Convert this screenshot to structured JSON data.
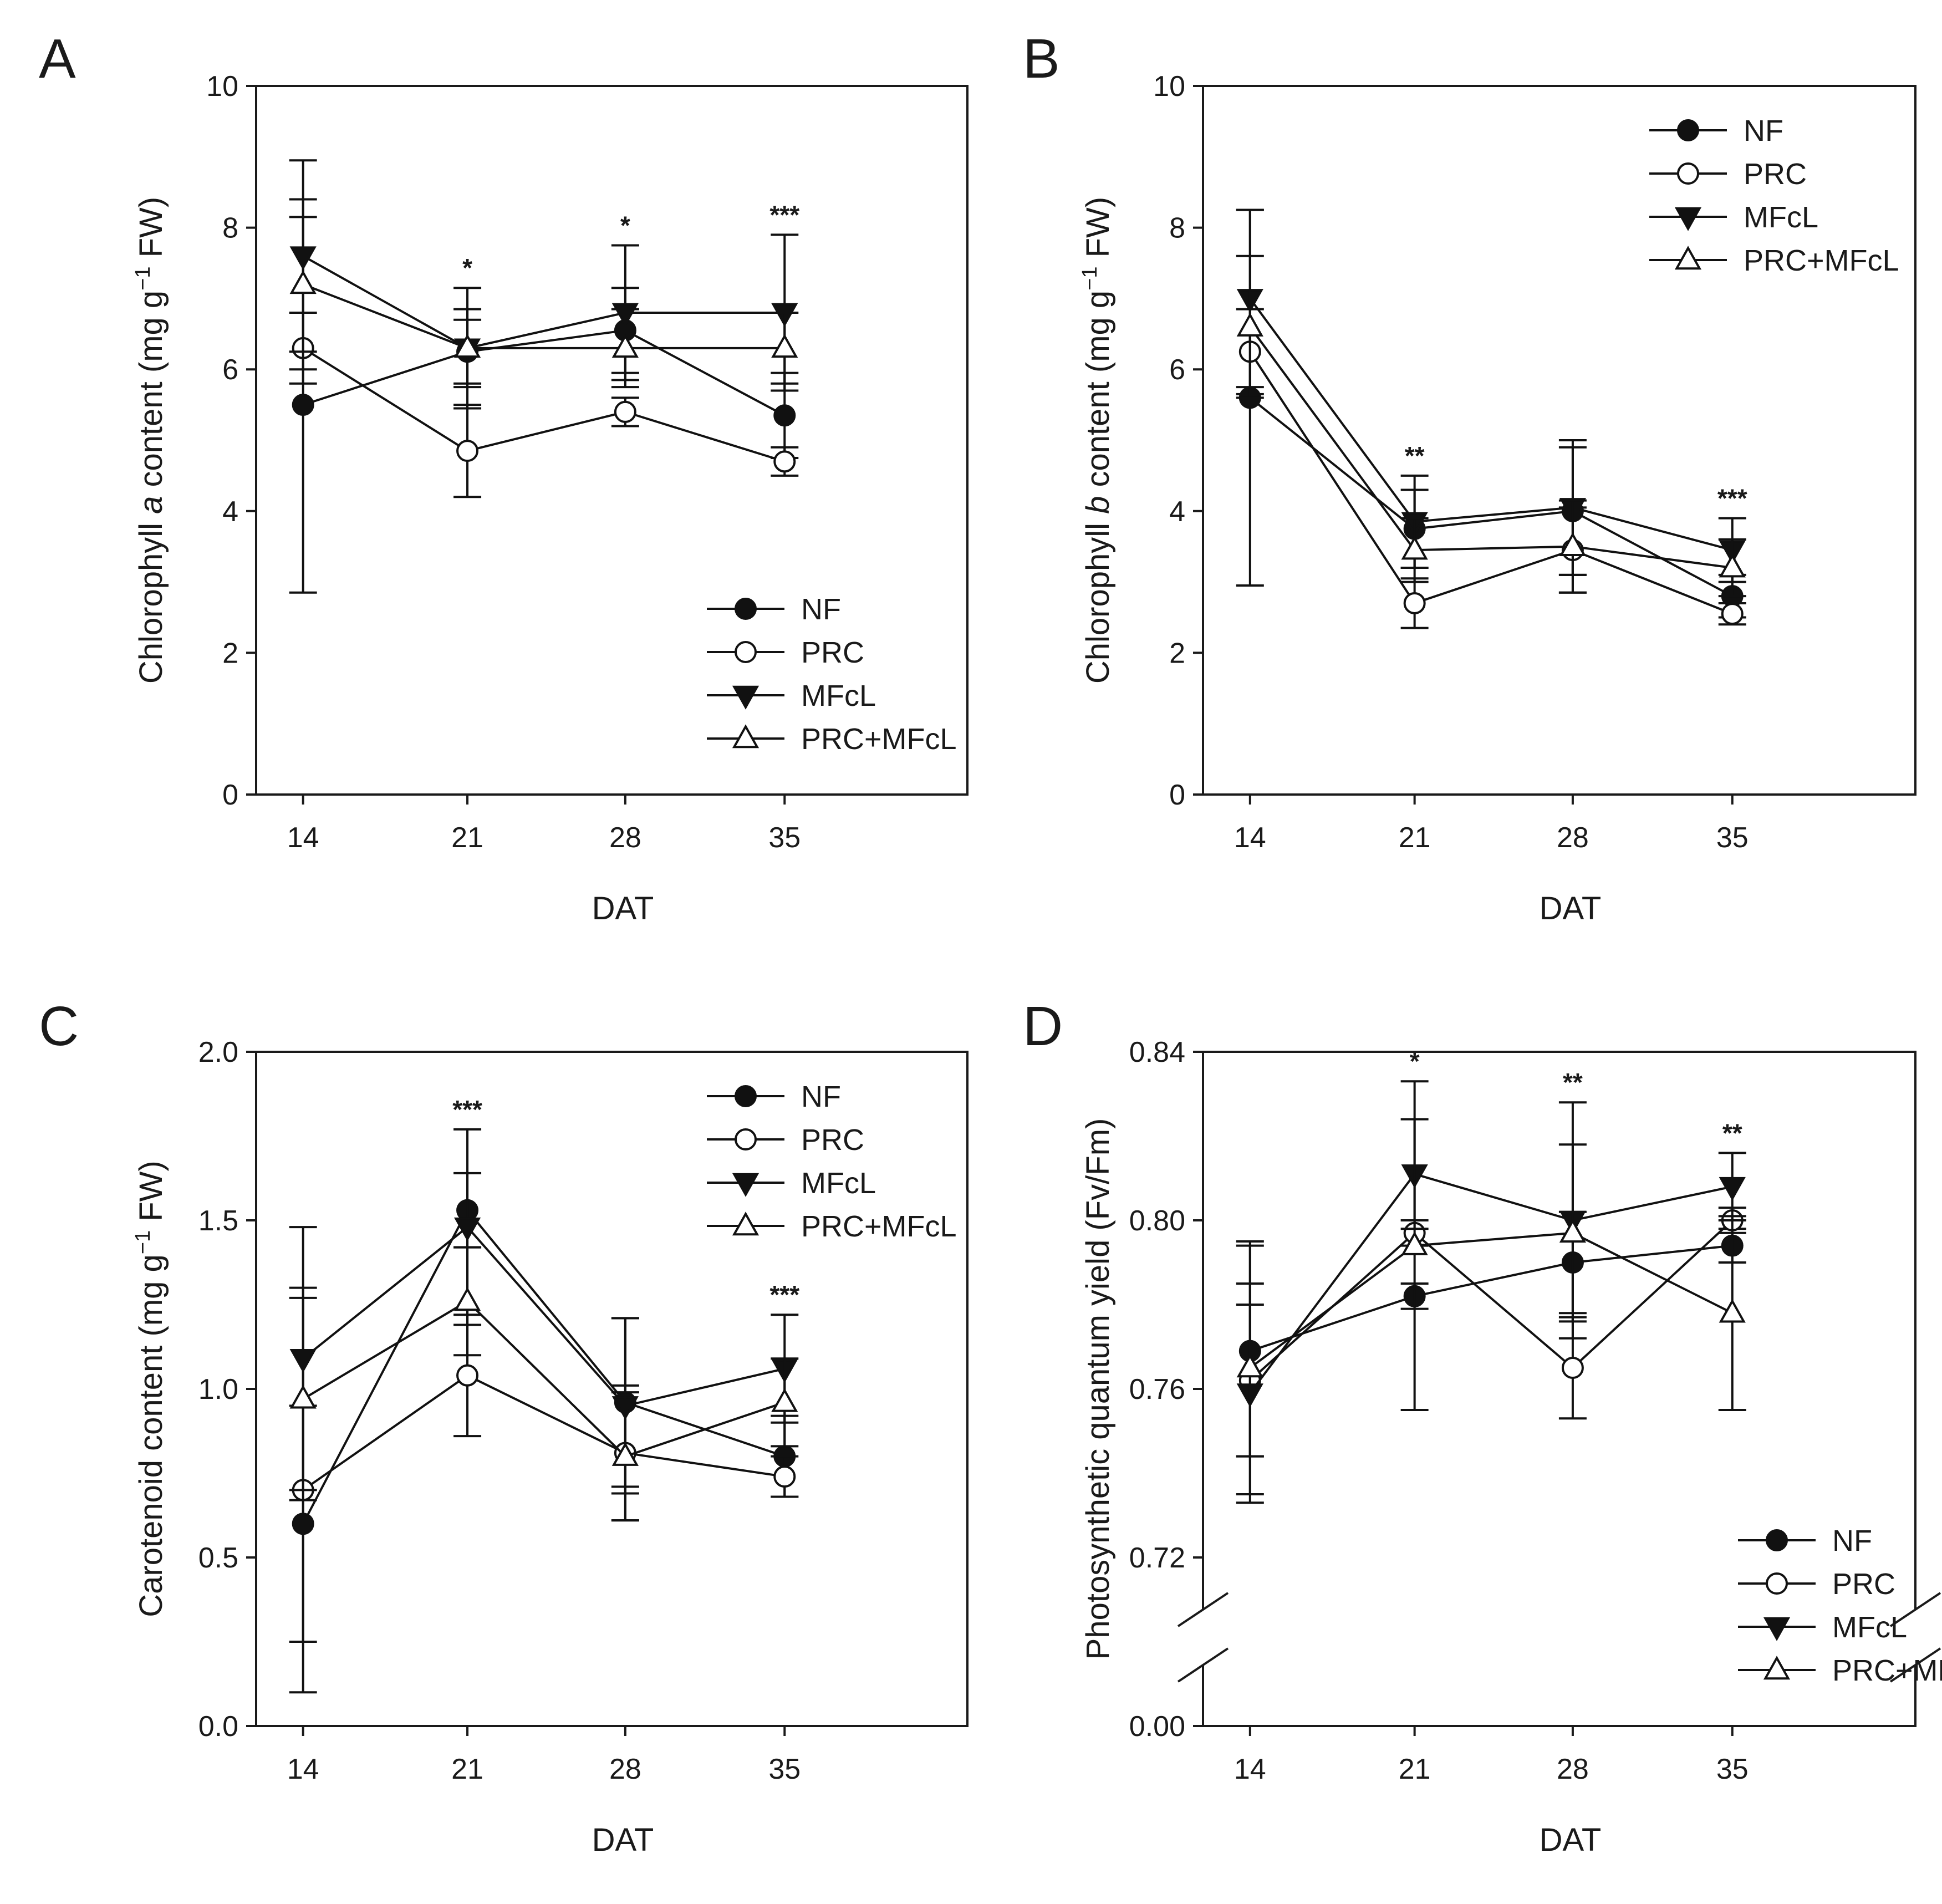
{
  "chart_data": [
    {
      "panel": "A",
      "type": "line",
      "x": [
        14,
        21,
        28,
        35
      ],
      "xlabel": "DAT",
      "ylabel": {
        "pre": "Chlorophyll ",
        "italic": "a",
        "post": " content (mg g",
        "sup": "−1",
        "end": " FW)"
      },
      "ylim": [
        0,
        10
      ],
      "yticks": [
        "0",
        "2",
        "4",
        "6",
        "8",
        "10"
      ],
      "ytick_values": [
        0,
        2,
        4,
        6,
        8,
        10
      ],
      "legend_position": "bottom-right",
      "series": [
        {
          "name": "NF",
          "marker": "circle-filled",
          "values": [
            5.5,
            6.25,
            6.55,
            5.35
          ],
          "err": [
            2.65,
            0.45,
            0.6,
            0.6
          ]
        },
        {
          "name": "PRC",
          "marker": "circle-open",
          "values": [
            6.3,
            4.85,
            5.4,
            4.7
          ],
          "err": [
            0.5,
            0.65,
            0.2,
            0.2
          ]
        },
        {
          "name": "MFcL",
          "marker": "triangle-down-filled",
          "values": [
            7.6,
            6.3,
            6.8,
            6.8
          ],
          "err": [
            1.35,
            0.85,
            0.95,
            1.1
          ]
        },
        {
          "name": "PRC+MFcL",
          "marker": "triangle-up-open",
          "values": [
            7.2,
            6.3,
            6.3,
            6.3
          ],
          "err": [
            1.2,
            0.55,
            0.55,
            0.5
          ]
        }
      ],
      "annotations": [
        {
          "x": 21,
          "text": "*"
        },
        {
          "x": 28,
          "text": "*"
        },
        {
          "x": 35,
          "text": "***"
        }
      ]
    },
    {
      "panel": "B",
      "type": "line",
      "x": [
        14,
        21,
        28,
        35
      ],
      "xlabel": "DAT",
      "ylabel": {
        "pre": "Chlorophyll ",
        "italic": "b",
        "post": " content (mg g",
        "sup": "−1",
        "end": " FW)"
      },
      "ylim": [
        0,
        10
      ],
      "yticks": [
        "0",
        "2",
        "4",
        "6",
        "8",
        "10"
      ],
      "ytick_values": [
        0,
        2,
        4,
        6,
        8,
        10
      ],
      "legend_position": "top-right",
      "series": [
        {
          "name": "NF",
          "marker": "circle-filled",
          "values": [
            5.6,
            3.75,
            4.0,
            2.8
          ],
          "err": [
            2.65,
            0.55,
            0.9,
            0.3
          ]
        },
        {
          "name": "PRC",
          "marker": "circle-open",
          "values": [
            6.25,
            2.7,
            3.45,
            2.55
          ],
          "err": [
            0.6,
            0.35,
            0.6,
            0.15
          ]
        },
        {
          "name": "MFcL",
          "marker": "triangle-down-filled",
          "values": [
            7.0,
            3.85,
            4.05,
            3.45
          ],
          "err": [
            1.25,
            0.65,
            0.95,
            0.45
          ]
        },
        {
          "name": "PRC+MFcL",
          "marker": "triangle-up-open",
          "values": [
            6.6,
            3.45,
            3.5,
            3.2
          ],
          "err": [
            1.0,
            0.45,
            0.65,
            0.4
          ]
        }
      ],
      "annotations": [
        {
          "x": 21,
          "text": "**"
        },
        {
          "x": 35,
          "text": "***"
        }
      ]
    },
    {
      "panel": "C",
      "type": "line",
      "x": [
        14,
        21,
        28,
        35
      ],
      "xlabel": "DAT",
      "ylabel": {
        "pre": "Carotenoid content (mg g",
        "italic": "",
        "post": "",
        "sup": "−1",
        "end": " FW)"
      },
      "ylim": [
        0,
        2
      ],
      "yticks": [
        "0.0",
        "0.5",
        "1.0",
        "1.5",
        "2.0"
      ],
      "ytick_values": [
        0,
        0.5,
        1.0,
        1.5,
        2.0
      ],
      "legend_position": "top-right",
      "series": [
        {
          "name": "NF",
          "marker": "circle-filled",
          "values": [
            0.6,
            1.53,
            0.96,
            0.8
          ],
          "err": [
            0.35,
            0.11,
            0.25,
            0.12
          ]
        },
        {
          "name": "PRC",
          "marker": "circle-open",
          "values": [
            0.7,
            1.04,
            0.81,
            0.74
          ],
          "err": [
            0.6,
            0.18,
            0.2,
            0.06
          ]
        },
        {
          "name": "MFcL",
          "marker": "triangle-down-filled",
          "values": [
            1.09,
            1.48,
            0.95,
            1.06
          ],
          "err": [
            0.39,
            0.29,
            0.26,
            0.16
          ]
        },
        {
          "name": "PRC+MFcL",
          "marker": "triangle-up-open",
          "values": [
            0.97,
            1.26,
            0.8,
            0.96
          ],
          "err": [
            0.3,
            0.16,
            0.19,
            0.13
          ]
        }
      ],
      "annotations": [
        {
          "x": 21,
          "text": "***"
        },
        {
          "x": 35,
          "text": "***"
        }
      ]
    },
    {
      "panel": "D",
      "type": "line",
      "x": [
        14,
        21,
        28,
        35
      ],
      "xlabel": "DAT",
      "ylabel": {
        "pre": "Photosynthetic quantum yield (Fv/Fm)",
        "italic": "",
        "post": "",
        "sup": "",
        "end": ""
      },
      "ylim": [
        0.68,
        0.84
      ],
      "axis_break": true,
      "yticks": [
        "0.00",
        "0.72",
        "0.76",
        "0.80",
        "0.84"
      ],
      "ytick_values": [
        0.68,
        0.72,
        0.76,
        0.8,
        0.84
      ],
      "legend_position": "bottom-right",
      "series": [
        {
          "name": "NF",
          "marker": "circle-filled",
          "values": [
            0.769,
            0.782,
            0.79,
            0.794
          ],
          "err": [
            0.025,
            0.003,
            0.012,
            0.004
          ]
        },
        {
          "name": "PRC",
          "marker": "circle-open",
          "values": [
            0.762,
            0.797,
            0.765,
            0.8
          ],
          "err": [
            0.018,
            0.003,
            0.012,
            0.003
          ]
        },
        {
          "name": "MFcL",
          "marker": "triangle-down-filled",
          "values": [
            0.759,
            0.811,
            0.8,
            0.808
          ],
          "err": [
            0.026,
            0.013,
            0.028,
            0.008
          ]
        },
        {
          "name": "PRC+MFcL",
          "marker": "triangle-up-open",
          "values": [
            0.765,
            0.794,
            0.797,
            0.778
          ],
          "err": [
            0.03,
            0.039,
            0.021,
            0.023
          ]
        }
      ],
      "annotations": [
        {
          "x": 21,
          "text": "*"
        },
        {
          "x": 28,
          "text": "**"
        },
        {
          "x": 35,
          "text": "**"
        }
      ]
    }
  ]
}
